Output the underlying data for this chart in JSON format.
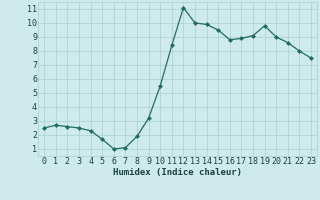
{
  "x": [
    0,
    1,
    2,
    3,
    4,
    5,
    6,
    7,
    8,
    9,
    10,
    11,
    12,
    13,
    14,
    15,
    16,
    17,
    18,
    19,
    20,
    21,
    22,
    23
  ],
  "y": [
    2.5,
    2.7,
    2.6,
    2.5,
    2.3,
    1.7,
    1.0,
    1.1,
    1.9,
    3.2,
    5.5,
    8.4,
    11.1,
    10.0,
    9.9,
    9.5,
    8.8,
    8.9,
    9.1,
    9.8,
    9.0,
    8.6,
    8.0,
    7.5
  ],
  "xlabel": "Humidex (Indice chaleur)",
  "line_color": "#1f6f5e",
  "marker": "D",
  "marker_size": 2.0,
  "bg_color": "#ceeaea",
  "grid_color": "#aacfcf",
  "tick_label_color": "#1a4040",
  "xlim": [
    -0.5,
    23.5
  ],
  "ylim": [
    0.5,
    11.5
  ],
  "xticks": [
    0,
    1,
    2,
    3,
    4,
    5,
    6,
    7,
    8,
    9,
    10,
    11,
    12,
    13,
    14,
    15,
    16,
    17,
    18,
    19,
    20,
    21,
    22,
    23
  ],
  "yticks": [
    1,
    2,
    3,
    4,
    5,
    6,
    7,
    8,
    9,
    10,
    11
  ],
  "xlabel_fontsize": 6.5,
  "tick_fontsize": 6.0,
  "linewidth": 0.9
}
